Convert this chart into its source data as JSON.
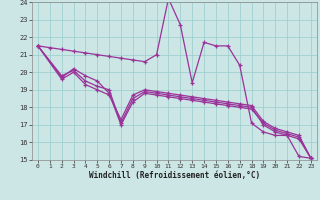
{
  "background_color": "#cce5e5",
  "grid_color": "#99cccc",
  "line_color": "#993399",
  "xlim": [
    -0.5,
    23.5
  ],
  "ylim": [
    15,
    24
  ],
  "xticks": [
    0,
    1,
    2,
    3,
    4,
    5,
    6,
    7,
    8,
    9,
    10,
    11,
    12,
    13,
    14,
    15,
    16,
    17,
    18,
    19,
    20,
    21,
    22,
    23
  ],
  "yticks": [
    15,
    16,
    17,
    18,
    19,
    20,
    21,
    22,
    23,
    24
  ],
  "xlabel": "Windchill (Refroidissement éolien,°C)",
  "series": {
    "top": {
      "x": [
        0,
        1,
        2,
        3,
        4,
        5,
        6,
        7,
        8,
        9,
        10,
        11,
        12,
        13,
        14,
        15,
        16,
        17,
        18,
        19,
        20,
        21,
        22,
        23
      ],
      "y": [
        21.5,
        21.4,
        21.3,
        21.2,
        21.1,
        21.0,
        20.9,
        20.8,
        20.7,
        20.6,
        21.0,
        24.2,
        22.7,
        19.4,
        21.7,
        21.5,
        21.5,
        20.4,
        17.1,
        16.6,
        16.4,
        16.4,
        15.2,
        15.1
      ]
    },
    "mid1": {
      "x": [
        0,
        2,
        3,
        4,
        5,
        6,
        7,
        8,
        9,
        10,
        11,
        12,
        13,
        14,
        15,
        16,
        17,
        18,
        19,
        20,
        21,
        22,
        23
      ],
      "y": [
        21.5,
        19.7,
        20.2,
        19.8,
        19.5,
        18.8,
        17.0,
        18.3,
        18.8,
        18.7,
        18.6,
        18.5,
        18.4,
        18.3,
        18.2,
        18.1,
        18.0,
        17.9,
        17.1,
        16.7,
        16.5,
        16.3,
        15.1
      ]
    },
    "mid2": {
      "x": [
        0,
        2,
        3,
        4,
        5,
        6,
        7,
        8,
        9,
        10,
        11,
        12,
        13,
        14,
        15,
        16,
        17,
        18,
        19,
        20,
        21,
        22,
        23
      ],
      "y": [
        21.5,
        19.8,
        20.1,
        19.5,
        19.2,
        19.0,
        17.1,
        18.5,
        18.9,
        18.8,
        18.7,
        18.6,
        18.5,
        18.4,
        18.3,
        18.2,
        18.1,
        18.0,
        17.0,
        16.6,
        16.4,
        16.2,
        15.1
      ]
    },
    "bot": {
      "x": [
        0,
        2,
        3,
        4,
        5,
        6,
        7,
        8,
        9,
        10,
        11,
        12,
        13,
        14,
        15,
        16,
        17,
        18,
        19,
        20,
        21,
        22,
        23
      ],
      "y": [
        21.5,
        19.6,
        20.0,
        19.3,
        19.0,
        18.7,
        17.3,
        18.7,
        19.0,
        18.9,
        18.8,
        18.7,
        18.6,
        18.5,
        18.4,
        18.3,
        18.2,
        18.1,
        17.2,
        16.8,
        16.6,
        16.4,
        15.1
      ]
    }
  }
}
